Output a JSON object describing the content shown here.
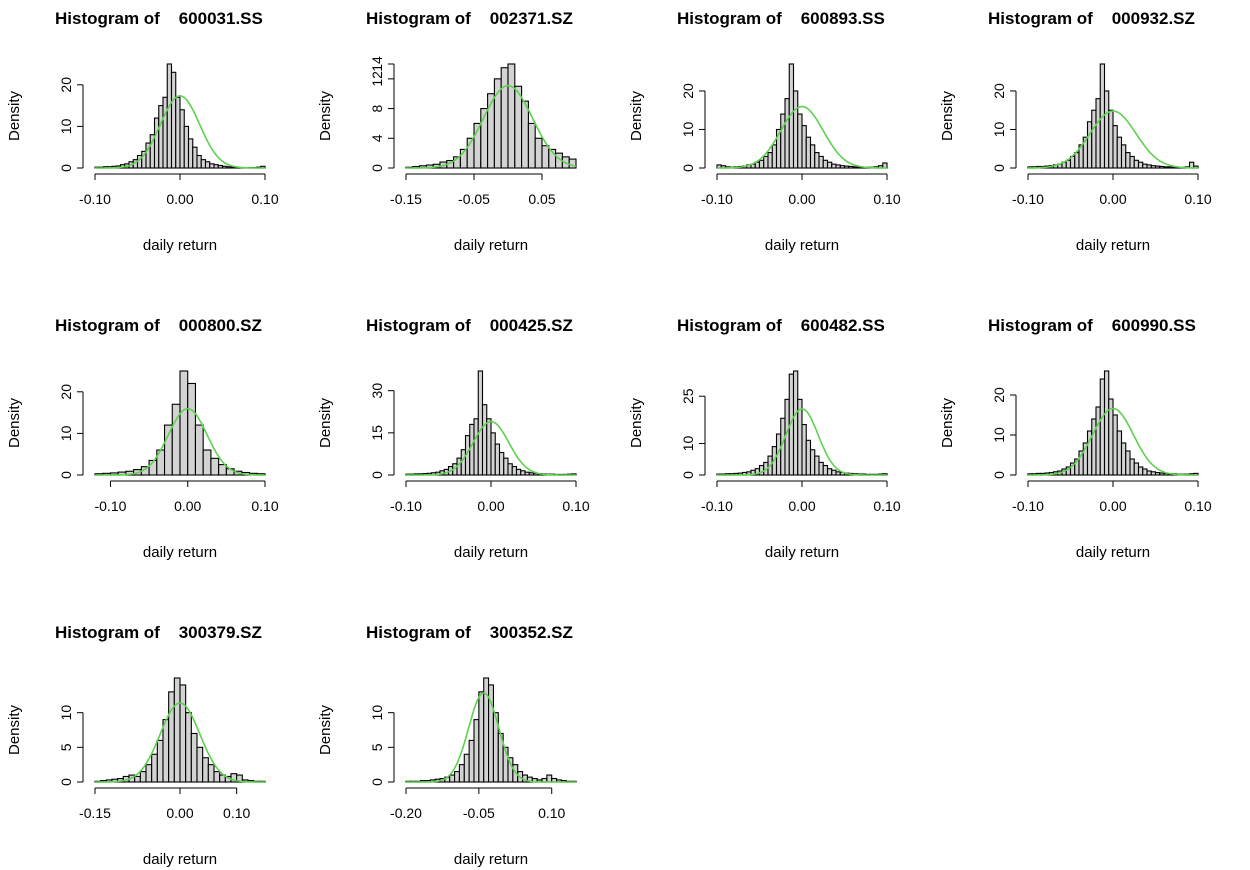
{
  "figure": {
    "hist_fill": "#d3d3d3",
    "hist_stroke": "#000000",
    "curve_color": "#5ed14f"
  },
  "chart_data": [
    {
      "type": "bar",
      "title": "Histogram of    600031.SS",
      "xlabel": "daily return",
      "ylabel": "Density",
      "xlim": [
        -0.1,
        0.1
      ],
      "ylim": [
        0,
        25
      ],
      "xticks": [
        -0.1,
        0.0,
        0.1
      ],
      "xtick_labels": [
        "-0.10",
        "0.00",
        "0.10"
      ],
      "yticks": [
        0,
        10,
        20
      ],
      "ytick_labels": [
        "0",
        "10",
        "20"
      ],
      "bins": {
        "start": -0.1,
        "width": 0.005,
        "values": [
          0.2,
          0.2,
          0.3,
          0.3,
          0.4,
          0.5,
          0.8,
          1.0,
          1.5,
          2.0,
          3,
          4,
          6,
          8,
          12,
          15,
          17,
          25,
          23,
          17,
          14,
          10,
          7,
          5,
          3,
          2,
          1.5,
          1.0,
          0.8,
          0.6,
          0.4,
          0.3,
          0.2,
          0.2,
          0.1,
          0.1,
          0.1,
          0.1,
          0.2,
          0.4
        ]
      },
      "normal_curve": {
        "mean": 0.0,
        "sd": 0.023
      }
    },
    {
      "type": "bar",
      "title": "Histogram of    002371.SZ",
      "xlabel": "daily return",
      "ylabel": "Density",
      "xlim": [
        -0.15,
        0.1
      ],
      "ylim": [
        0,
        14
      ],
      "xticks": [
        -0.15,
        -0.05,
        0.05
      ],
      "xtick_labels": [
        "-0.15",
        "-0.05",
        "0.05"
      ],
      "yticks": [
        0,
        4,
        8,
        12
      ],
      "ytick_labels": [
        "0",
        "4",
        "8",
        "12"
      ],
      "extra_ytick": {
        "value": 14,
        "label": "14"
      },
      "bins": {
        "start": -0.15,
        "width": 0.01,
        "values": [
          0.1,
          0.2,
          0.3,
          0.4,
          0.5,
          0.8,
          1.0,
          1.5,
          2.5,
          4,
          6,
          8,
          10,
          12,
          13.5,
          14,
          11,
          9,
          6,
          4,
          3,
          2.5,
          2,
          1.5,
          1.2
        ]
      },
      "normal_curve": {
        "mean": 0.0,
        "sd": 0.036
      }
    },
    {
      "type": "bar",
      "title": "Histogram of    600893.SS",
      "xlabel": "daily return",
      "ylabel": "Density",
      "xlim": [
        -0.1,
        0.1
      ],
      "ylim": [
        0,
        27
      ],
      "xticks": [
        -0.1,
        0.0,
        0.1
      ],
      "xtick_labels": [
        "-0.10",
        "0.00",
        "0.10"
      ],
      "yticks": [
        0,
        10,
        20
      ],
      "ytick_labels": [
        "0",
        "10",
        "20"
      ],
      "bins": {
        "start": -0.1,
        "width": 0.005,
        "values": [
          0.8,
          0.6,
          0.3,
          0.2,
          0.3,
          0.4,
          0.5,
          0.8,
          1.0,
          1.5,
          2.0,
          3,
          4,
          6,
          10,
          14,
          18,
          27,
          20,
          14,
          11,
          8,
          6,
          4,
          3,
          2,
          1.5,
          1.0,
          0.8,
          0.6,
          0.5,
          0.4,
          0.3,
          0.3,
          0.2,
          0.2,
          0.2,
          0.3,
          0.6,
          1.3
        ]
      },
      "normal_curve": {
        "mean": 0.0,
        "sd": 0.025
      }
    },
    {
      "type": "bar",
      "title": "Histogram of    000932.SZ",
      "xlabel": "daily return",
      "ylabel": "Density",
      "xlim": [
        -0.1,
        0.1
      ],
      "ylim": [
        0,
        27
      ],
      "xticks": [
        -0.1,
        0.0,
        0.1
      ],
      "xtick_labels": [
        "-0.10",
        "0.00",
        "0.10"
      ],
      "yticks": [
        0,
        10,
        20
      ],
      "ytick_labels": [
        "0",
        "10",
        "20"
      ],
      "bins": {
        "start": -0.1,
        "width": 0.005,
        "values": [
          0.3,
          0.3,
          0.4,
          0.4,
          0.5,
          0.6,
          0.8,
          1.0,
          1.5,
          2.0,
          3,
          4,
          6,
          8,
          12,
          15,
          18,
          27,
          20,
          15,
          11,
          8,
          6,
          4,
          3,
          2,
          1.5,
          1.0,
          0.8,
          0.6,
          0.5,
          0.4,
          0.3,
          0.3,
          0.2,
          0.2,
          0.2,
          0.3,
          1.5,
          0.5
        ]
      },
      "normal_curve": {
        "mean": 0.0,
        "sd": 0.027
      }
    },
    {
      "type": "bar",
      "title": "Histogram of    000800.SZ",
      "xlabel": "daily return",
      "ylabel": "Density",
      "xlim": [
        -0.12,
        0.1
      ],
      "ylim": [
        0,
        25
      ],
      "xticks": [
        -0.1,
        0.0,
        0.1
      ],
      "xtick_labels": [
        "-0.10",
        "0.00",
        "0.10"
      ],
      "yticks": [
        0,
        10,
        20
      ],
      "ytick_labels": [
        "0",
        "10",
        "20"
      ],
      "bins": {
        "start": -0.12,
        "width": 0.01,
        "values": [
          0.3,
          0.4,
          0.5,
          0.7,
          0.9,
          1.3,
          2.0,
          3.5,
          6,
          12,
          17,
          25,
          22,
          12,
          6,
          4,
          2.5,
          1.5,
          0.9,
          0.6,
          0.4,
          0.3
        ]
      },
      "normal_curve": {
        "mean": 0.0,
        "sd": 0.025
      }
    },
    {
      "type": "bar",
      "title": "Histogram of    000425.SZ",
      "xlabel": "daily return",
      "ylabel": "Density",
      "xlim": [
        -0.1,
        0.1
      ],
      "ylim": [
        0,
        37
      ],
      "xticks": [
        -0.1,
        0.0,
        0.1
      ],
      "xtick_labels": [
        "-0.10",
        "0.00",
        "0.10"
      ],
      "yticks": [
        0,
        15,
        30
      ],
      "ytick_labels": [
        "0",
        "15",
        "30"
      ],
      "bins": {
        "start": -0.1,
        "width": 0.005,
        "values": [
          0.3,
          0.3,
          0.4,
          0.4,
          0.5,
          0.6,
          0.8,
          1.0,
          1.5,
          2.0,
          3,
          4,
          6,
          9,
          14,
          18,
          20,
          37,
          25,
          20,
          15,
          11,
          8,
          6,
          4,
          3,
          2,
          1.5,
          1.0,
          0.8,
          0.6,
          0.5,
          0.4,
          0.3,
          0.3,
          0.2,
          0.2,
          0.2,
          0.3,
          0.4
        ]
      },
      "normal_curve": {
        "mean": 0.0,
        "sd": 0.021
      }
    },
    {
      "type": "bar",
      "title": "Histogram of    600482.SS",
      "xlabel": "daily return",
      "ylabel": "Density",
      "xlim": [
        -0.1,
        0.1
      ],
      "ylim": [
        0,
        33
      ],
      "xticks": [
        -0.1,
        0.0,
        0.1
      ],
      "xtick_labels": [
        "-0.10",
        "0.00",
        "0.10"
      ],
      "yticks": [
        0,
        10,
        25
      ],
      "ytick_labels": [
        "0",
        "10",
        "25"
      ],
      "bins": {
        "start": -0.1,
        "width": 0.005,
        "values": [
          0.3,
          0.3,
          0.4,
          0.4,
          0.5,
          0.6,
          0.8,
          1.0,
          1.5,
          2.0,
          3,
          4,
          6,
          9,
          13,
          18,
          24,
          32,
          33,
          24,
          16,
          11,
          8,
          6,
          4,
          3,
          2,
          1.5,
          1.0,
          0.8,
          0.6,
          0.5,
          0.4,
          0.3,
          0.3,
          0.2,
          0.2,
          0.2,
          0.3,
          0.4
        ]
      },
      "normal_curve": {
        "mean": 0.0,
        "sd": 0.019
      }
    },
    {
      "type": "bar",
      "title": "Histogram of    600990.SS",
      "xlabel": "daily return",
      "ylabel": "Density",
      "xlim": [
        -0.1,
        0.1
      ],
      "ylim": [
        0,
        26
      ],
      "xticks": [
        -0.1,
        0.0,
        0.1
      ],
      "xtick_labels": [
        "-0.10",
        "0.00",
        "0.10"
      ],
      "yticks": [
        0,
        10,
        20
      ],
      "ytick_labels": [
        "0",
        "10",
        "20"
      ],
      "bins": {
        "start": -0.1,
        "width": 0.005,
        "values": [
          0.3,
          0.3,
          0.4,
          0.4,
          0.5,
          0.6,
          0.8,
          1.0,
          1.5,
          2.0,
          3,
          4,
          6,
          8,
          11,
          14,
          17,
          24,
          26,
          19,
          15,
          11,
          8,
          6,
          4,
          3,
          2,
          1.5,
          1.0,
          0.8,
          0.6,
          0.5,
          0.4,
          0.3,
          0.3,
          0.2,
          0.2,
          0.2,
          0.3,
          0.4
        ]
      },
      "normal_curve": {
        "mean": 0.0,
        "sd": 0.024
      }
    },
    {
      "type": "bar",
      "title": "Histogram of    300379.SZ",
      "xlabel": "daily return",
      "ylabel": "Density",
      "xlim": [
        -0.15,
        0.15
      ],
      "ylim": [
        0,
        15
      ],
      "xticks": [
        -0.15,
        0.0,
        0.1
      ],
      "xtick_labels": [
        "-0.15",
        "0.00",
        "0.10"
      ],
      "yticks": [
        0,
        5,
        10
      ],
      "ytick_labels": [
        "0",
        "5",
        "10"
      ],
      "bins": {
        "start": -0.15,
        "width": 0.01,
        "values": [
          0.1,
          0.2,
          0.3,
          0.4,
          0.5,
          0.8,
          1.0,
          0.8,
          1.5,
          2.5,
          4,
          6,
          9,
          13,
          15,
          14,
          10,
          7,
          5,
          3.5,
          2.5,
          1.5,
          1.0,
          0.8,
          1.2,
          1.0,
          0.3,
          0.2,
          0.1,
          0.1
        ]
      },
      "normal_curve": {
        "mean": 0.0,
        "sd": 0.035
      }
    },
    {
      "type": "bar",
      "title": "Histogram of    300352.SZ",
      "xlabel": "daily return",
      "ylabel": "Density",
      "xlim": [
        -0.2,
        0.15
      ],
      "ylim": [
        0,
        15
      ],
      "xticks": [
        -0.2,
        -0.05,
        0.1
      ],
      "xtick_labels": [
        "-0.20",
        "-0.05",
        "0.10"
      ],
      "yticks": [
        0,
        5,
        10
      ],
      "ytick_labels": [
        "0",
        "5",
        "10"
      ],
      "bins": {
        "start": -0.2,
        "width": 0.01,
        "values": [
          0.1,
          0.1,
          0.1,
          0.2,
          0.2,
          0.3,
          0.4,
          0.5,
          0.7,
          1.0,
          1.5,
          2.5,
          4,
          6,
          9,
          13,
          15,
          14,
          10,
          7,
          5,
          3.5,
          2.5,
          1.5,
          1.0,
          0.7,
          0.5,
          0.3,
          0.5,
          1.0,
          0.5,
          0.3,
          0.2,
          0.1,
          0.1
        ]
      },
      "normal_curve": {
        "mean": -0.04,
        "sd": 0.031
      }
    }
  ]
}
